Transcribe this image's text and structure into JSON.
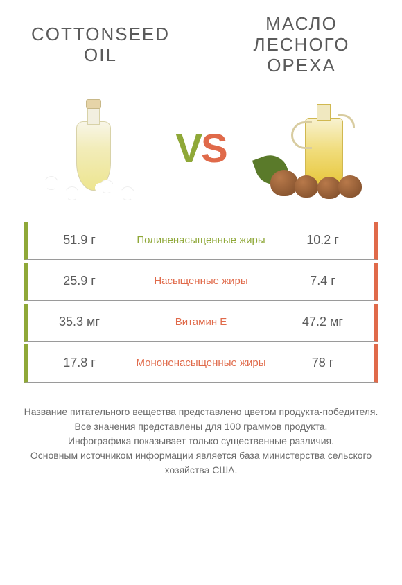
{
  "titles": {
    "left": "COTTONSEED OIL",
    "right": "МАСЛО ЛЕСНОГО ОРЕХА"
  },
  "vs": {
    "v": "V",
    "s": "S"
  },
  "colors": {
    "green": "#8fa838",
    "orange": "#e06a4a",
    "text": "#5b5b5b",
    "gray": "#9a9a9a"
  },
  "rows": [
    {
      "left": "51.9 г",
      "label": "Полиненасыщенные жиры",
      "right": "10.2 г",
      "winner": "left"
    },
    {
      "left": "25.9 г",
      "label": "Насыщенные жиры",
      "right": "7.4 г",
      "winner": "right"
    },
    {
      "left": "35.3 мг",
      "label": "Витамин E",
      "right": "47.2 мг",
      "winner": "right"
    },
    {
      "left": "17.8 г",
      "label": "Мононенасыщенные жиры",
      "right": "78 г",
      "winner": "right"
    }
  ],
  "footer": {
    "l1": "Название питательного вещества представлено цветом продукта-победителя.",
    "l2": "Все значения представлены для 100 граммов продукта.",
    "l3": "Инфографика показывает только существенные различия.",
    "l4": "Основным источником информации является база министерства сельского хозяйства США."
  }
}
